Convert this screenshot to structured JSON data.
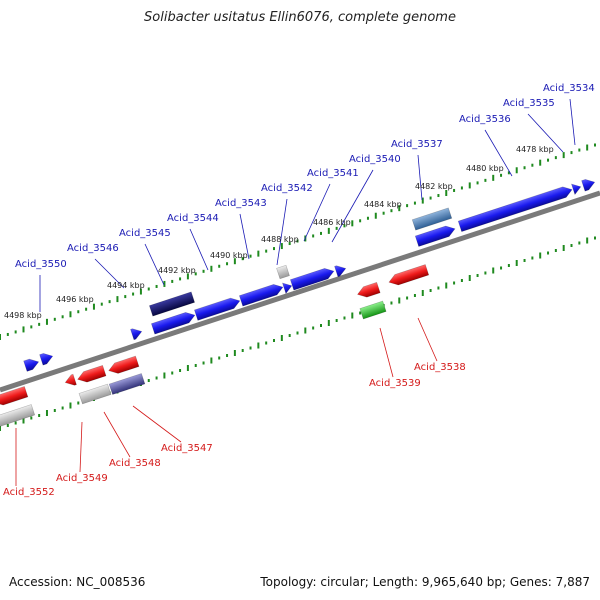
{
  "title": "Solibacter usitatus Ellin6076, complete genome",
  "footer": {
    "accession": "Accession: NC_008536",
    "topology": "Topology: circular; Length: 9,965,640 bp; Genes: 7,887"
  },
  "colors": {
    "forward_gene": "#1a1aee",
    "forward_label": "#1a1ab4",
    "reverse_gene": "#ee1a1a",
    "reverse_label": "#d41a1a",
    "backbone": "#7a7a7a",
    "tick": "#1f8a1f",
    "dark_gene": "#10106e",
    "steel_gene": "#4f7fb5",
    "grey_gene": "#bdbdbd",
    "green_gene": "#2ec72e",
    "slate_gene": "#5555a8"
  },
  "kbp_labels": [
    "4498 kbp",
    "4496 kbp",
    "4494 kbp",
    "4492 kbp",
    "4490 kbp",
    "4488 kbp",
    "4486 kbp",
    "4484 kbp",
    "4482 kbp",
    "4480 kbp",
    "4478 kbp"
  ],
  "top_labels": [
    "Acid_3550",
    "Acid_3546",
    "Acid_3545",
    "Acid_3544",
    "Acid_3543",
    "Acid_3542",
    "Acid_3541",
    "Acid_3540",
    "Acid_3537",
    "Acid_3536",
    "Acid_3535",
    "Acid_3534"
  ],
  "bottom_labels": [
    "Acid_3552",
    "Acid_3549",
    "Acid_3548",
    "Acid_3547",
    "Acid_3539",
    "Acid_3538"
  ]
}
